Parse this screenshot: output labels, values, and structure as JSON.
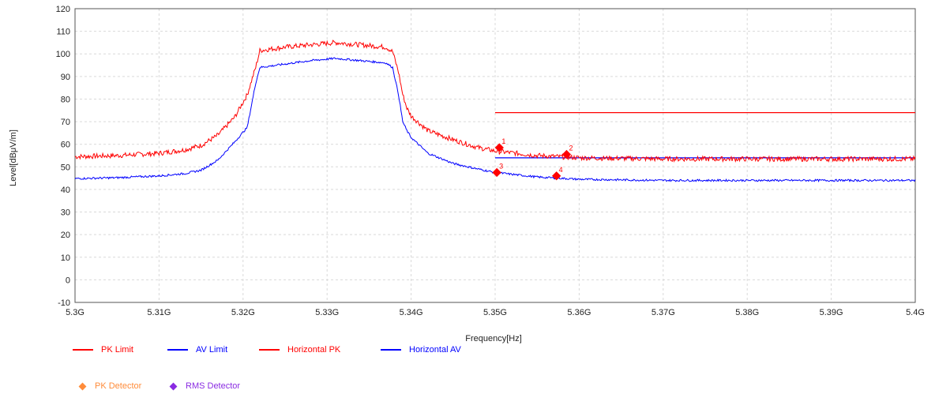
{
  "chart_data": {
    "type": "line",
    "xlabel": "Frequency[Hz]",
    "ylabel": "Level[dBμV/m]",
    "xlim": [
      5.3,
      5.4
    ],
    "ylim": [
      -10,
      120
    ],
    "x_unit": "GHz",
    "x_ticks": [
      5.3,
      5.31,
      5.32,
      5.33,
      5.34,
      5.35,
      5.36,
      5.37,
      5.38,
      5.39,
      5.4
    ],
    "x_tick_labels": [
      "5.3G",
      "5.31G",
      "5.32G",
      "5.33G",
      "5.34G",
      "5.35G",
      "5.36G",
      "5.37G",
      "5.38G",
      "5.39G",
      "5.4G"
    ],
    "y_ticks": [
      -10,
      0,
      10,
      20,
      30,
      40,
      50,
      60,
      70,
      80,
      90,
      100,
      110,
      120
    ],
    "grid": true,
    "series": [
      {
        "name": "PK Limit",
        "color": "#ff0000",
        "x": [
          5.35,
          5.4
        ],
        "y": [
          74,
          74
        ]
      },
      {
        "name": "AV Limit",
        "color": "#0000ff",
        "x": [
          5.35,
          5.4
        ],
        "y": [
          54,
          54
        ]
      },
      {
        "name": "Horizontal PK",
        "color": "#ff0000",
        "x": [
          5.3,
          5.305,
          5.31,
          5.313,
          5.315,
          5.317,
          5.319,
          5.3205,
          5.3215,
          5.322,
          5.325,
          5.328,
          5.331,
          5.334,
          5.337,
          5.3378,
          5.3385,
          5.339,
          5.3395,
          5.34,
          5.342,
          5.345,
          5.348,
          5.35,
          5.355,
          5.36,
          5.37,
          5.38,
          5.39,
          5.4
        ],
        "y": [
          54.5,
          55,
          56,
          57.5,
          59.5,
          64,
          72,
          82,
          94,
          101.5,
          103,
          104,
          105,
          104,
          103,
          101,
          92,
          82,
          76,
          72.5,
          66,
          62,
          58.5,
          57,
          55,
          54,
          53.5,
          53.5,
          53.5,
          53.5
        ]
      },
      {
        "name": "Horizontal AV",
        "color": "#0000ff",
        "x": [
          5.3,
          5.305,
          5.31,
          5.313,
          5.315,
          5.317,
          5.319,
          5.3205,
          5.3215,
          5.322,
          5.325,
          5.328,
          5.331,
          5.334,
          5.337,
          5.3378,
          5.3385,
          5.339,
          5.3395,
          5.34,
          5.342,
          5.345,
          5.348,
          5.35,
          5.355,
          5.36,
          5.37,
          5.38,
          5.39,
          5.4
        ],
        "y": [
          44.8,
          45.2,
          46,
          47,
          48.5,
          53,
          61,
          67.5,
          87,
          94,
          95.5,
          97,
          98,
          97,
          96,
          94,
          82,
          70,
          66,
          63,
          56,
          51.5,
          49,
          47.5,
          45.5,
          44.5,
          44,
          44,
          44,
          44
        ]
      }
    ],
    "markers": [
      {
        "label": "1",
        "x": 5.3505,
        "y": 58.5,
        "color": "#ff0000"
      },
      {
        "label": "2",
        "x": 5.3585,
        "y": 55.5,
        "color": "#ff0000"
      },
      {
        "label": "3",
        "x": 5.3502,
        "y": 47.5,
        "color": "#ff0000"
      },
      {
        "label": "4",
        "x": 5.3573,
        "y": 46,
        "color": "#ff0000"
      }
    ],
    "legend": {
      "placement": "bottom",
      "lines": [
        {
          "label": "PK Limit",
          "color": "#ff0000"
        },
        {
          "label": "AV Limit",
          "color": "#0000ff"
        },
        {
          "label": "Horizontal PK",
          "color": "#ff0000"
        },
        {
          "label": "Horizontal AV",
          "color": "#0000ff"
        }
      ],
      "detectors": [
        {
          "label": "PK Detector",
          "color": "#ff8c3a"
        },
        {
          "label": "RMS Detector",
          "color": "#8a2be2"
        }
      ]
    }
  }
}
